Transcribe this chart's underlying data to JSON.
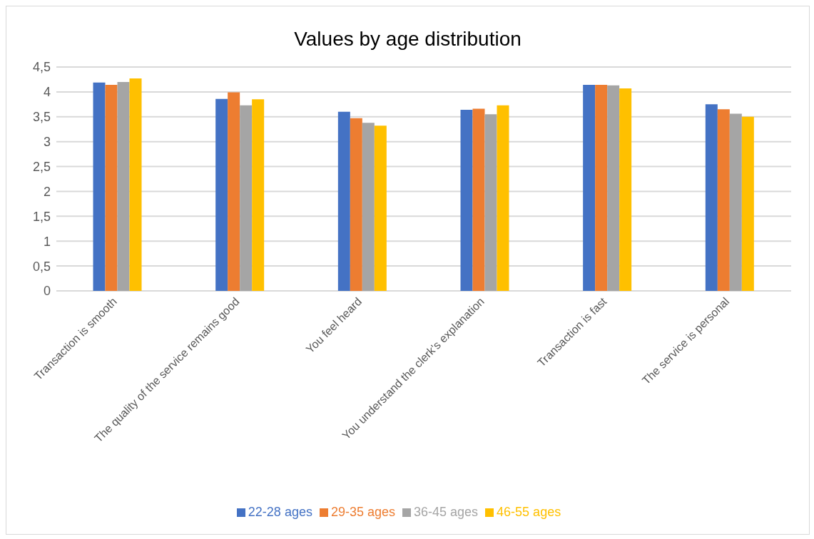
{
  "chart_data": {
    "type": "bar",
    "title": "Values by age distribution",
    "categories": [
      "Transaction is smooth",
      "The quality of the service remains good",
      "You feel heard",
      "You understand the clerk's explanation",
      "Transaction is fast",
      "The service is personal"
    ],
    "series": [
      {
        "name": "22-28 ages",
        "color": "#4472c4",
        "values": [
          4.19,
          3.86,
          3.6,
          3.64,
          4.14,
          3.75
        ]
      },
      {
        "name": "29-35 ages",
        "color": "#ed7d31",
        "values": [
          4.14,
          3.99,
          3.47,
          3.66,
          4.14,
          3.65
        ]
      },
      {
        "name": "36-45 ages",
        "color": "#a5a5a5",
        "values": [
          4.2,
          3.73,
          3.38,
          3.55,
          4.13,
          3.56
        ]
      },
      {
        "name": "46-55 ages",
        "color": "#ffc000",
        "values": [
          4.27,
          3.85,
          3.32,
          3.73,
          4.07,
          3.5
        ]
      }
    ],
    "ylim": [
      0,
      4.5
    ],
    "yticks": [
      0,
      {
        "value": 0.5,
        "label": "0,5"
      },
      1,
      {
        "value": 1.5,
        "label": "1,5"
      },
      2,
      {
        "value": 2.5,
        "label": "2,5"
      },
      3,
      {
        "value": 3.5,
        "label": "3,5"
      },
      4,
      {
        "value": 4.5,
        "label": "4,5"
      }
    ],
    "grid": "y",
    "legend": "bottom"
  }
}
